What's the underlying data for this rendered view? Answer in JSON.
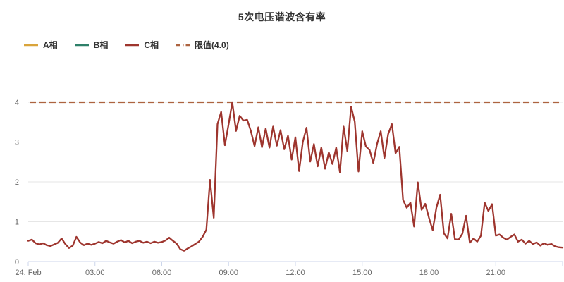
{
  "chart_data": {
    "type": "line",
    "title": "5次电压谐波含有率",
    "x_axis": {
      "tick_labels": [
        "24. Feb",
        "03:00",
        "06:00",
        "09:00",
        "12:00",
        "15:00",
        "18:00",
        "21:00"
      ],
      "tick_interval_hours": 3,
      "range_hours": [
        0,
        24
      ]
    },
    "y_axis": {
      "ticks": [
        0,
        1,
        2,
        3,
        4
      ],
      "min": 0,
      "max": 4,
      "grid": "horizontal-only"
    },
    "legend": [
      {
        "label": "A相",
        "color": "#d9a43b",
        "style": "solid"
      },
      {
        "label": "B相",
        "color": "#2e8069",
        "style": "solid"
      },
      {
        "label": "C相",
        "color": "#9e352e",
        "style": "solid"
      },
      {
        "label": "限值(4.0)",
        "color": "#ad6340",
        "style": "dashed"
      }
    ],
    "limit_line": {
      "value": 4.0,
      "color": "#ad6340",
      "dash": "9 5"
    },
    "series": [
      {
        "name": "C相",
        "color": "#9e352e",
        "start_time": "00:00",
        "interval_minutes": 10,
        "values": [
          0.52,
          0.55,
          0.46,
          0.43,
          0.46,
          0.41,
          0.39,
          0.43,
          0.47,
          0.58,
          0.44,
          0.34,
          0.4,
          0.62,
          0.48,
          0.41,
          0.45,
          0.42,
          0.45,
          0.49,
          0.46,
          0.52,
          0.48,
          0.45,
          0.5,
          0.54,
          0.48,
          0.52,
          0.46,
          0.5,
          0.52,
          0.47,
          0.5,
          0.46,
          0.5,
          0.47,
          0.49,
          0.53,
          0.6,
          0.52,
          0.45,
          0.31,
          0.27,
          0.33,
          0.38,
          0.44,
          0.5,
          0.62,
          0.8,
          2.05,
          1.1,
          3.45,
          3.76,
          2.92,
          3.45,
          4.0,
          3.28,
          3.66,
          3.54,
          3.56,
          3.28,
          2.9,
          3.37,
          2.87,
          3.34,
          2.86,
          3.39,
          2.91,
          3.3,
          2.82,
          3.16,
          2.56,
          3.12,
          2.27,
          3.0,
          3.36,
          2.51,
          2.95,
          2.39,
          2.86,
          2.33,
          2.74,
          2.45,
          2.86,
          2.24,
          3.39,
          2.77,
          3.89,
          3.51,
          2.26,
          3.27,
          2.89,
          2.8,
          2.47,
          2.95,
          3.27,
          2.6,
          3.2,
          3.45,
          2.72,
          2.88,
          1.55,
          1.35,
          1.48,
          0.88,
          1.99,
          1.3,
          1.45,
          1.1,
          0.79,
          1.35,
          1.68,
          0.71,
          0.58,
          1.2,
          0.56,
          0.55,
          0.7,
          1.15,
          0.47,
          0.58,
          0.5,
          0.65,
          1.48,
          1.27,
          1.44,
          0.65,
          0.68,
          0.6,
          0.55,
          0.62,
          0.68,
          0.5,
          0.55,
          0.45,
          0.52,
          0.44,
          0.48,
          0.4,
          0.46,
          0.42,
          0.44,
          0.38,
          0.36,
          0.35
        ]
      }
    ],
    "colors": {
      "gridline": "#e6e6e6",
      "axis_line": "#ccd6eb",
      "axis_label": "#666666",
      "title_text": "#333333",
      "legend_text": "#333333",
      "background": "#ffffff"
    }
  }
}
